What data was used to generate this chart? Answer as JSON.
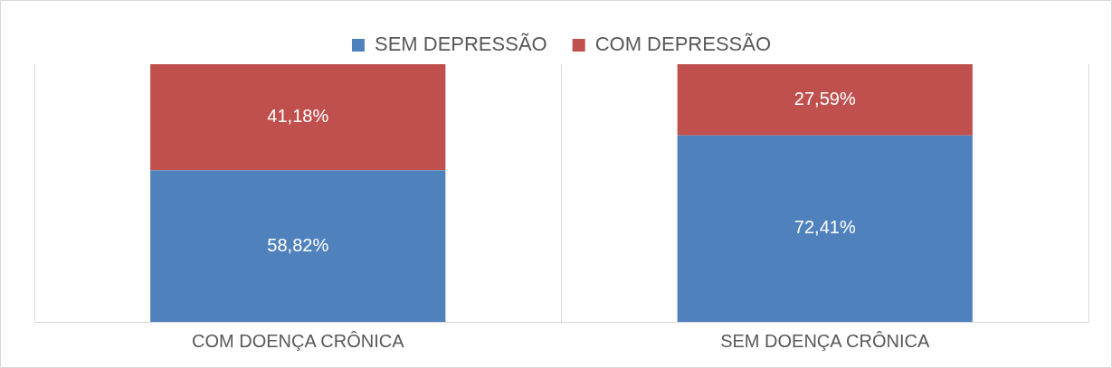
{
  "chart_data": {
    "type": "bar",
    "stacked": true,
    "categories": [
      "COM DOENÇA CRÔNICA",
      "SEM DOENÇA CRÔNICA"
    ],
    "series": [
      {
        "name": "SEM DEPRESSÃO",
        "color": "#4f81bd",
        "values": [
          58.82,
          72.41
        ],
        "value_labels": [
          "58,82%",
          "72,41%"
        ]
      },
      {
        "name": "COM DEPRESSÃO",
        "color": "#c0504d",
        "values": [
          41.18,
          27.59
        ],
        "value_labels": [
          "41,18%",
          "27,59%"
        ]
      }
    ],
    "ylim": [
      0,
      100
    ],
    "tick_labels": "x",
    "grid": "x",
    "legend": "top"
  }
}
